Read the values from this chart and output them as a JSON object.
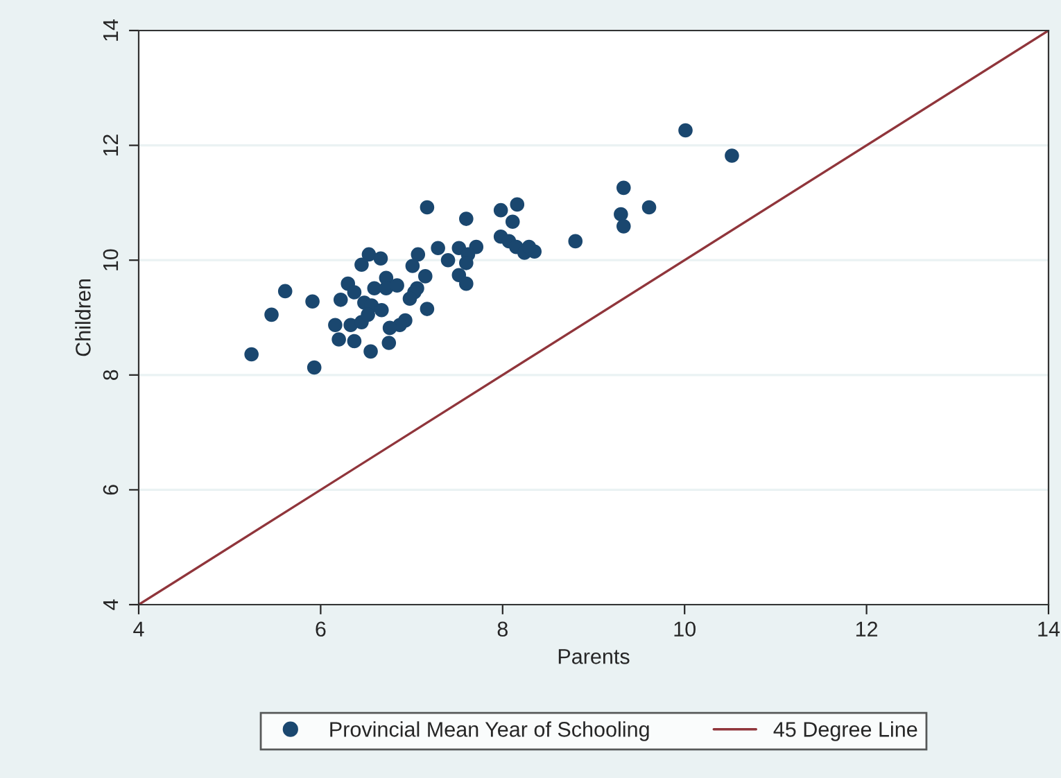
{
  "chart_data": {
    "type": "scatter",
    "xlabel": "Parents",
    "ylabel": "Children",
    "xlim": [
      4,
      14
    ],
    "xticks": [
      4,
      6,
      8,
      10,
      12,
      14
    ],
    "ylim": [
      4,
      14
    ],
    "yticks": [
      4,
      6,
      8,
      10,
      12,
      14
    ],
    "grid": "y",
    "legend": "bottom",
    "series": [
      {
        "name": "Provincial Mean Year of Schooling",
        "marker": "circle",
        "color": "#1a476f",
        "x": [
          5.24,
          5.46,
          5.61,
          5.91,
          5.93,
          7.17,
          7.6,
          7.98,
          7.98,
          6.53,
          6.66,
          6.45,
          7.07,
          7.01,
          7.29,
          7.4,
          7.52,
          7.71,
          7.62,
          7.6,
          7.52,
          7.6,
          7.15,
          7.06,
          7.03,
          6.98,
          7.17,
          6.93,
          6.87,
          6.76,
          6.75,
          6.55,
          6.37,
          6.2,
          6.16,
          6.33,
          6.45,
          6.3,
          6.22,
          6.37,
          6.48,
          6.59,
          6.72,
          6.72,
          6.84,
          6.56,
          6.67,
          6.52,
          8.16,
          8.11,
          8.07,
          8.15,
          8.24,
          8.35,
          8.29,
          8.8,
          9.33,
          9.3,
          9.33,
          9.61,
          10.52,
          10.01
        ],
        "values": [
          8.36,
          9.05,
          9.46,
          9.28,
          8.13,
          10.92,
          10.72,
          10.87,
          10.41,
          10.1,
          10.03,
          9.92,
          10.1,
          9.9,
          10.21,
          10.0,
          10.21,
          10.23,
          10.1,
          9.95,
          9.74,
          9.59,
          9.72,
          9.51,
          9.44,
          9.33,
          9.15,
          8.95,
          8.87,
          8.82,
          8.56,
          8.41,
          8.59,
          8.62,
          8.87,
          8.87,
          8.92,
          9.59,
          9.31,
          9.44,
          9.26,
          9.51,
          9.69,
          9.51,
          9.56,
          9.21,
          9.13,
          9.05,
          10.97,
          10.67,
          10.33,
          10.23,
          10.13,
          10.15,
          10.23,
          10.33,
          11.26,
          10.8,
          10.59,
          10.92,
          11.82,
          12.26
        ]
      },
      {
        "name": "45 Degree Line",
        "type": "line",
        "marker": "none",
        "line_style": "solid",
        "color": "#90353b",
        "x": [
          4,
          14
        ],
        "values": [
          4,
          14
        ]
      }
    ]
  }
}
